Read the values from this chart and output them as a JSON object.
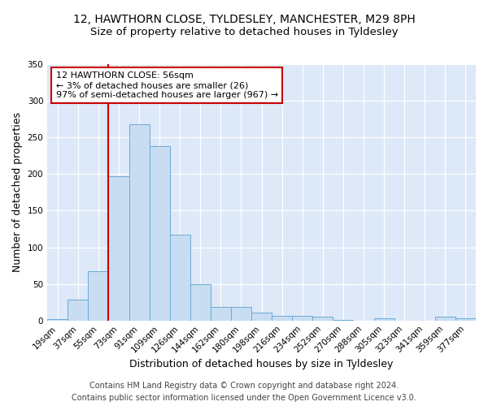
{
  "title1": "12, HAWTHORN CLOSE, TYLDESLEY, MANCHESTER, M29 8PH",
  "title2": "Size of property relative to detached houses in Tyldesley",
  "xlabel": "Distribution of detached houses by size in Tyldesley",
  "ylabel": "Number of detached properties",
  "categories": [
    "19sqm",
    "37sqm",
    "55sqm",
    "73sqm",
    "91sqm",
    "109sqm",
    "126sqm",
    "144sqm",
    "162sqm",
    "180sqm",
    "198sqm",
    "216sqm",
    "234sqm",
    "252sqm",
    "270sqm",
    "288sqm",
    "305sqm",
    "323sqm",
    "341sqm",
    "359sqm",
    "377sqm"
  ],
  "values": [
    2,
    29,
    67,
    197,
    268,
    238,
    117,
    50,
    18,
    18,
    11,
    6,
    6,
    5,
    1,
    0,
    3,
    0,
    0,
    5,
    3
  ],
  "bar_color": "#c9ddf2",
  "bar_edge_color": "#6aaad4",
  "vline_x": 2.5,
  "vline_color": "#cc0000",
  "annotation_text": "12 HAWTHORN CLOSE: 56sqm\n← 3% of detached houses are smaller (26)\n97% of semi-detached houses are larger (967) →",
  "annotation_box_color": "#ffffff",
  "annotation_box_edge_color": "#cc0000",
  "ylim": [
    0,
    350
  ],
  "yticks": [
    0,
    50,
    100,
    150,
    200,
    250,
    300,
    350
  ],
  "background_color": "#dde8f8",
  "footer1": "Contains HM Land Registry data © Crown copyright and database right 2024.",
  "footer2": "Contains public sector information licensed under the Open Government Licence v3.0.",
  "title_fontsize": 10,
  "subtitle_fontsize": 9.5,
  "axis_label_fontsize": 9,
  "tick_fontsize": 7.5,
  "annotation_fontsize": 8,
  "footer_fontsize": 7
}
